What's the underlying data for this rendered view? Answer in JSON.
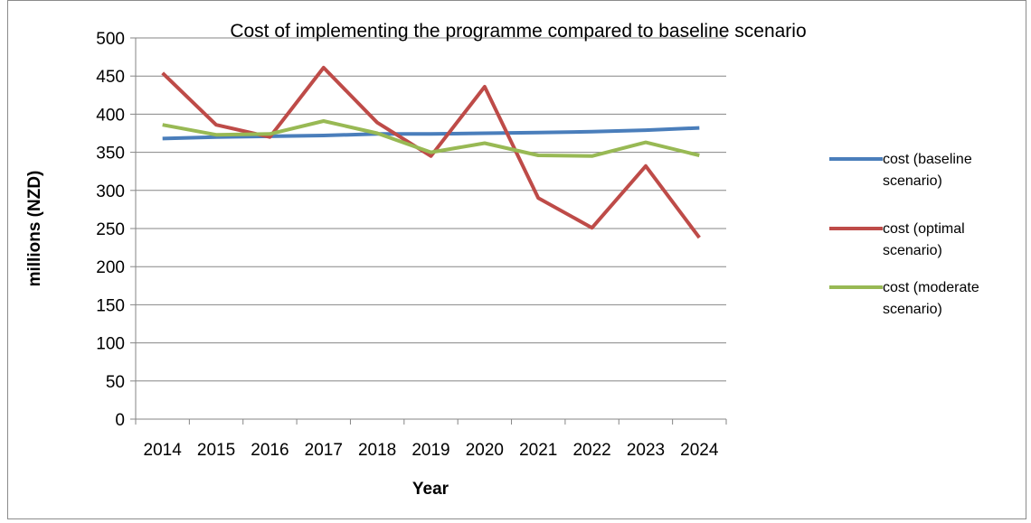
{
  "chart_data": {
    "type": "line",
    "title": "Cost of implementing the programme compared to baseline scenario",
    "xlabel": "Year",
    "ylabel": "millions (NZD)",
    "ylim": [
      0,
      500
    ],
    "yticks": [
      0,
      50,
      100,
      150,
      200,
      250,
      300,
      350,
      400,
      450,
      500
    ],
    "grid": "horizontal",
    "legend_position": "right",
    "categories": [
      "2014",
      "2015",
      "2016",
      "2017",
      "2018",
      "2019",
      "2020",
      "2021",
      "2022",
      "2023",
      "2024"
    ],
    "series": [
      {
        "name_lines": [
          "cost (baseline",
          "scenario)"
        ],
        "color": "#4a7ebb",
        "values": [
          368,
          370,
          371,
          372,
          374,
          374,
          375,
          376,
          377,
          379,
          382
        ]
      },
      {
        "name_lines": [
          "cost (optimal",
          "scenario)"
        ],
        "color": "#be4b48",
        "values": [
          454,
          386,
          370,
          461,
          389,
          345,
          436,
          290,
          251,
          332,
          238
        ]
      },
      {
        "name_lines": [
          "cost (moderate",
          "scenario)"
        ],
        "color": "#98b954",
        "values": [
          386,
          373,
          374,
          391,
          375,
          350,
          362,
          346,
          345,
          363,
          346
        ]
      }
    ]
  }
}
